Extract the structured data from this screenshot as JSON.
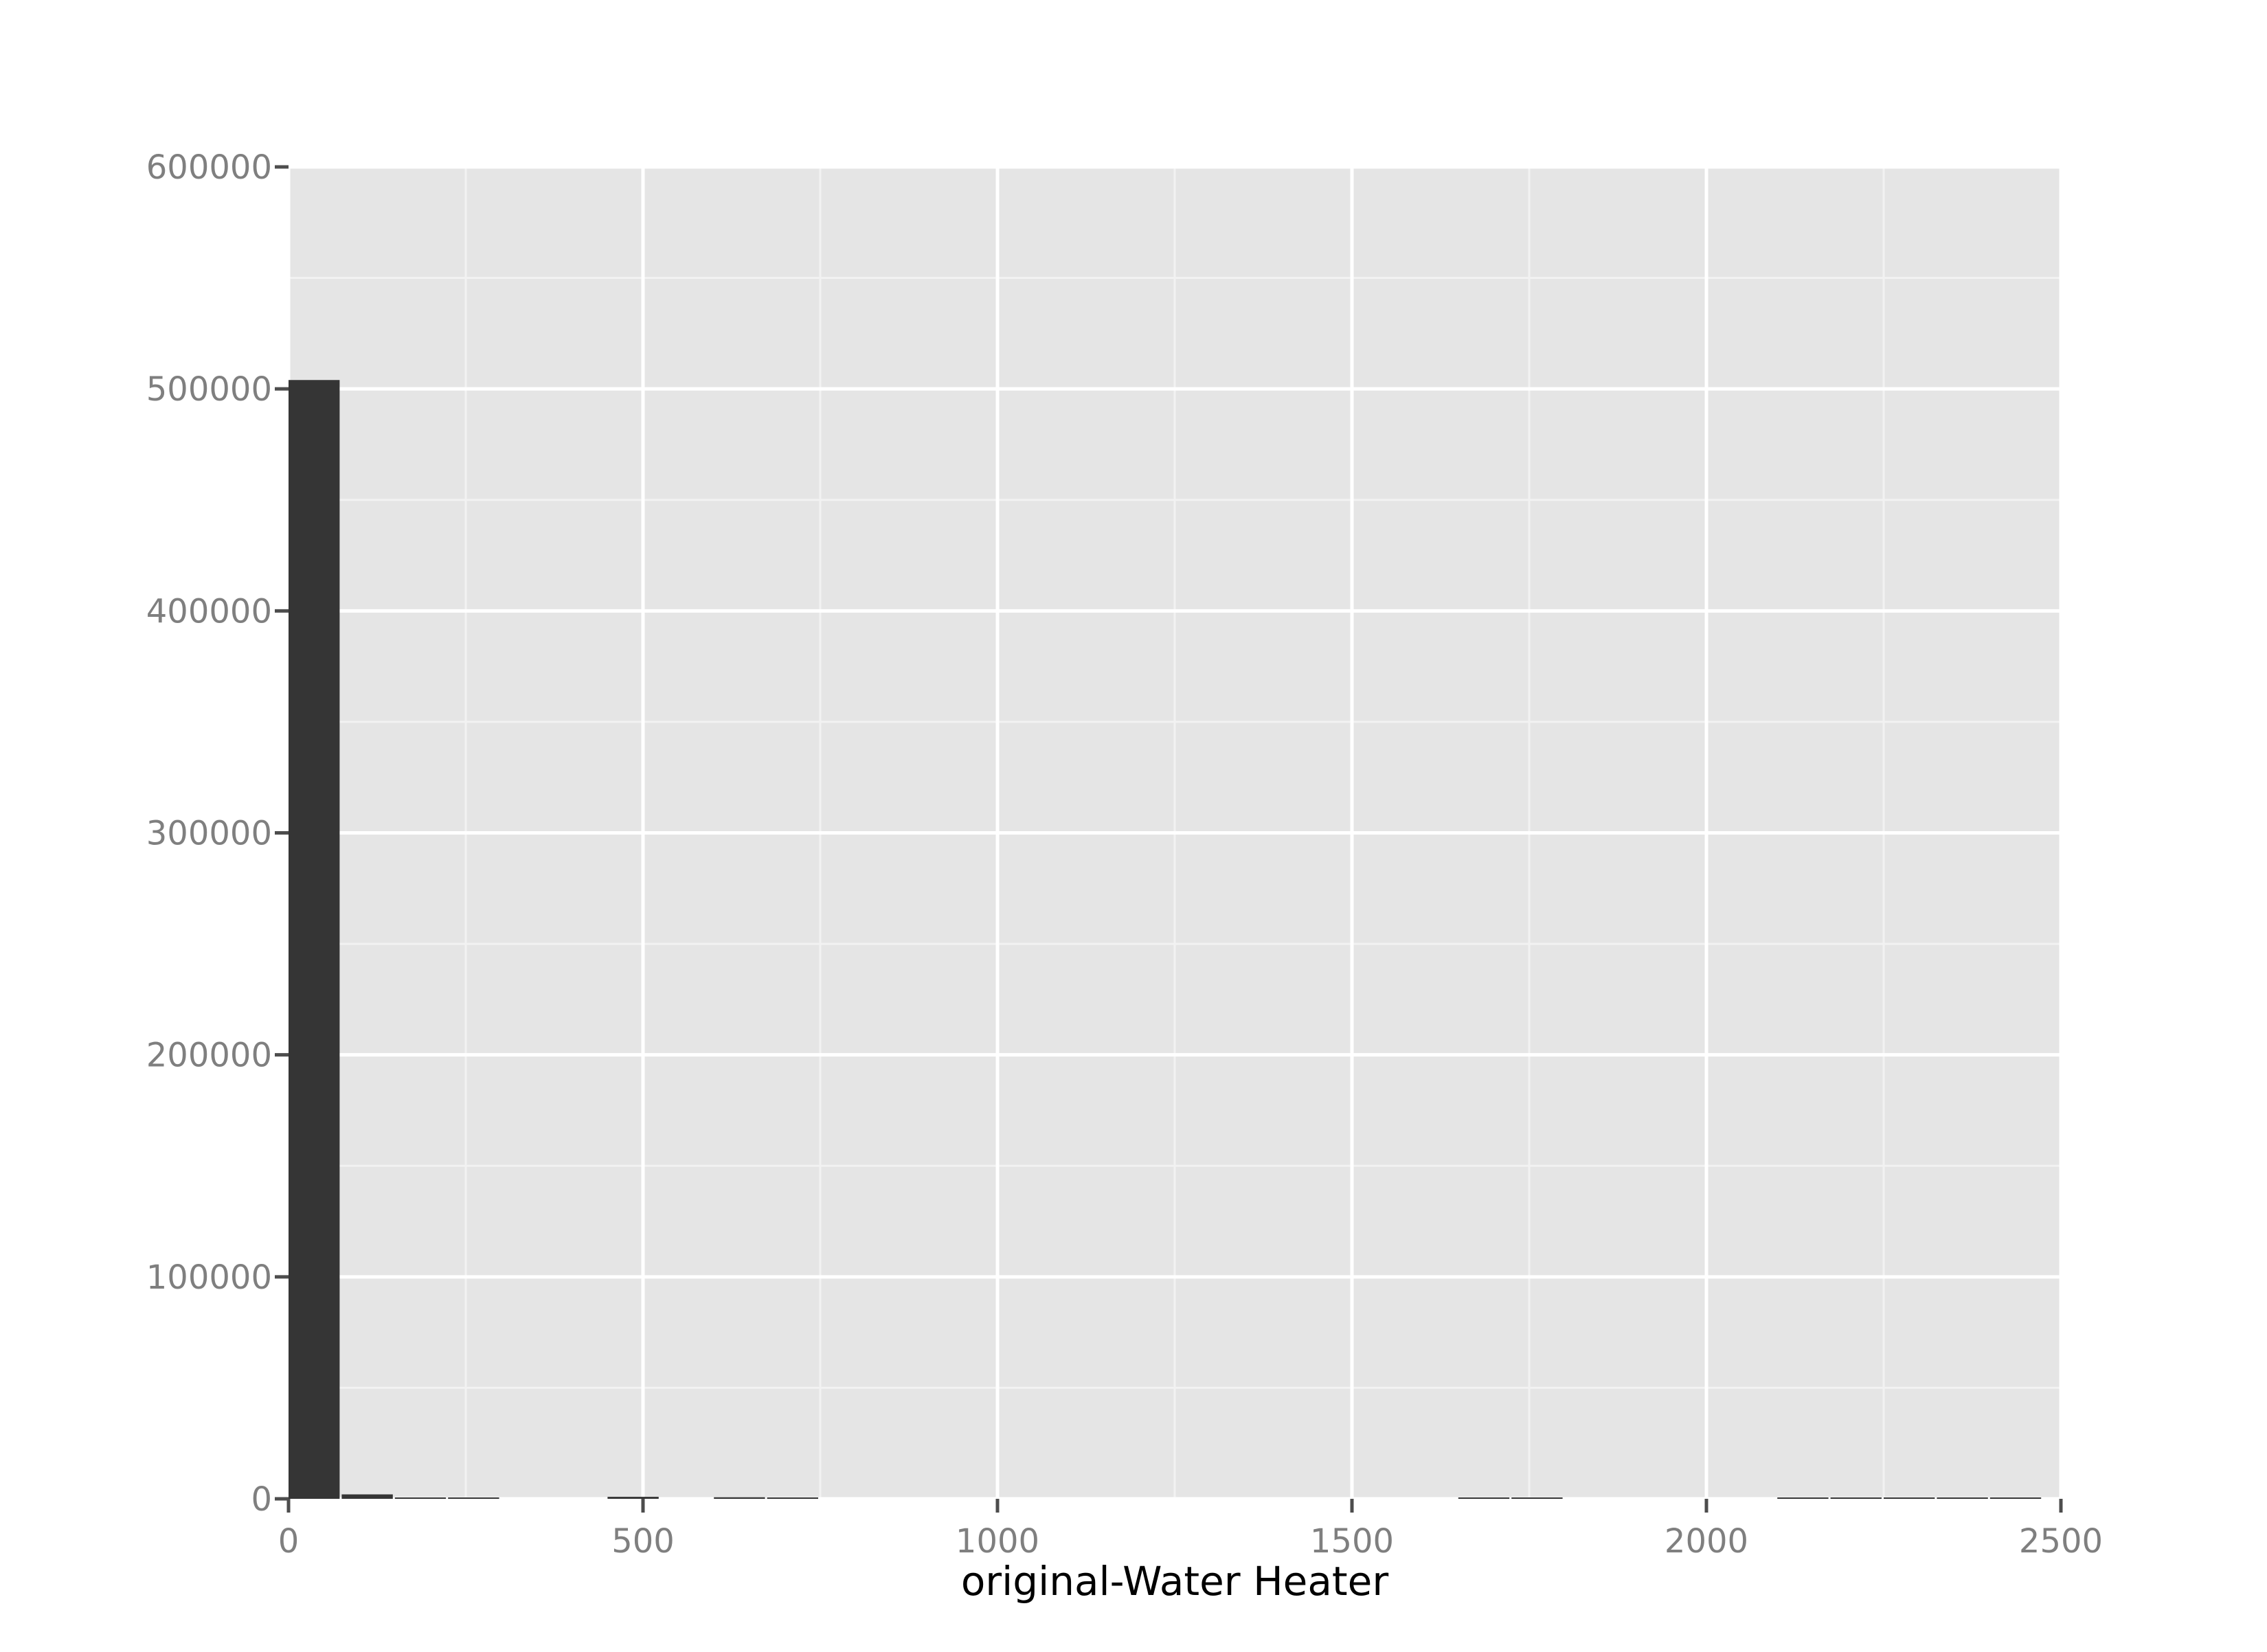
{
  "chart_data": {
    "type": "bar",
    "title": "",
    "xlabel": "original-Water Heater",
    "ylabel": "",
    "xlim": [
      0,
      2500
    ],
    "ylim": [
      0,
      600000
    ],
    "x_ticks": [
      "0",
      "500",
      "1000",
      "1500",
      "2000",
      "2500"
    ],
    "y_ticks": [
      "0",
      "100000",
      "200000",
      "300000",
      "400000",
      "500000",
      "600000"
    ],
    "grid": true,
    "legend": "none",
    "bin_width": 75,
    "bins": [
      {
        "x0": 0,
        "x1": 75,
        "count": 504000
      },
      {
        "x0": 75,
        "x1": 150,
        "count": 2000
      },
      {
        "x0": 150,
        "x1": 225,
        "count": 300
      },
      {
        "x0": 225,
        "x1": 300,
        "count": 200
      },
      {
        "x0": 450,
        "x1": 525,
        "count": 900
      },
      {
        "x0": 600,
        "x1": 675,
        "count": 700
      },
      {
        "x0": 675,
        "x1": 750,
        "count": 400
      },
      {
        "x0": 1650,
        "x1": 1725,
        "count": 100
      },
      {
        "x0": 1725,
        "x1": 1800,
        "count": 100
      },
      {
        "x0": 2100,
        "x1": 2175,
        "count": 100
      },
      {
        "x0": 2175,
        "x1": 2250,
        "count": 100
      },
      {
        "x0": 2250,
        "x1": 2325,
        "count": 150
      },
      {
        "x0": 2325,
        "x1": 2400,
        "count": 200
      },
      {
        "x0": 2400,
        "x1": 2475,
        "count": 150
      }
    ],
    "colors": {
      "panel_background": "#e5e5e5",
      "grid_major": "#ffffff",
      "grid_minor": "#f2f2f2",
      "bar_fill": "#353535",
      "tick_text": "#7f7f7f",
      "axis_title": "#000000"
    }
  }
}
